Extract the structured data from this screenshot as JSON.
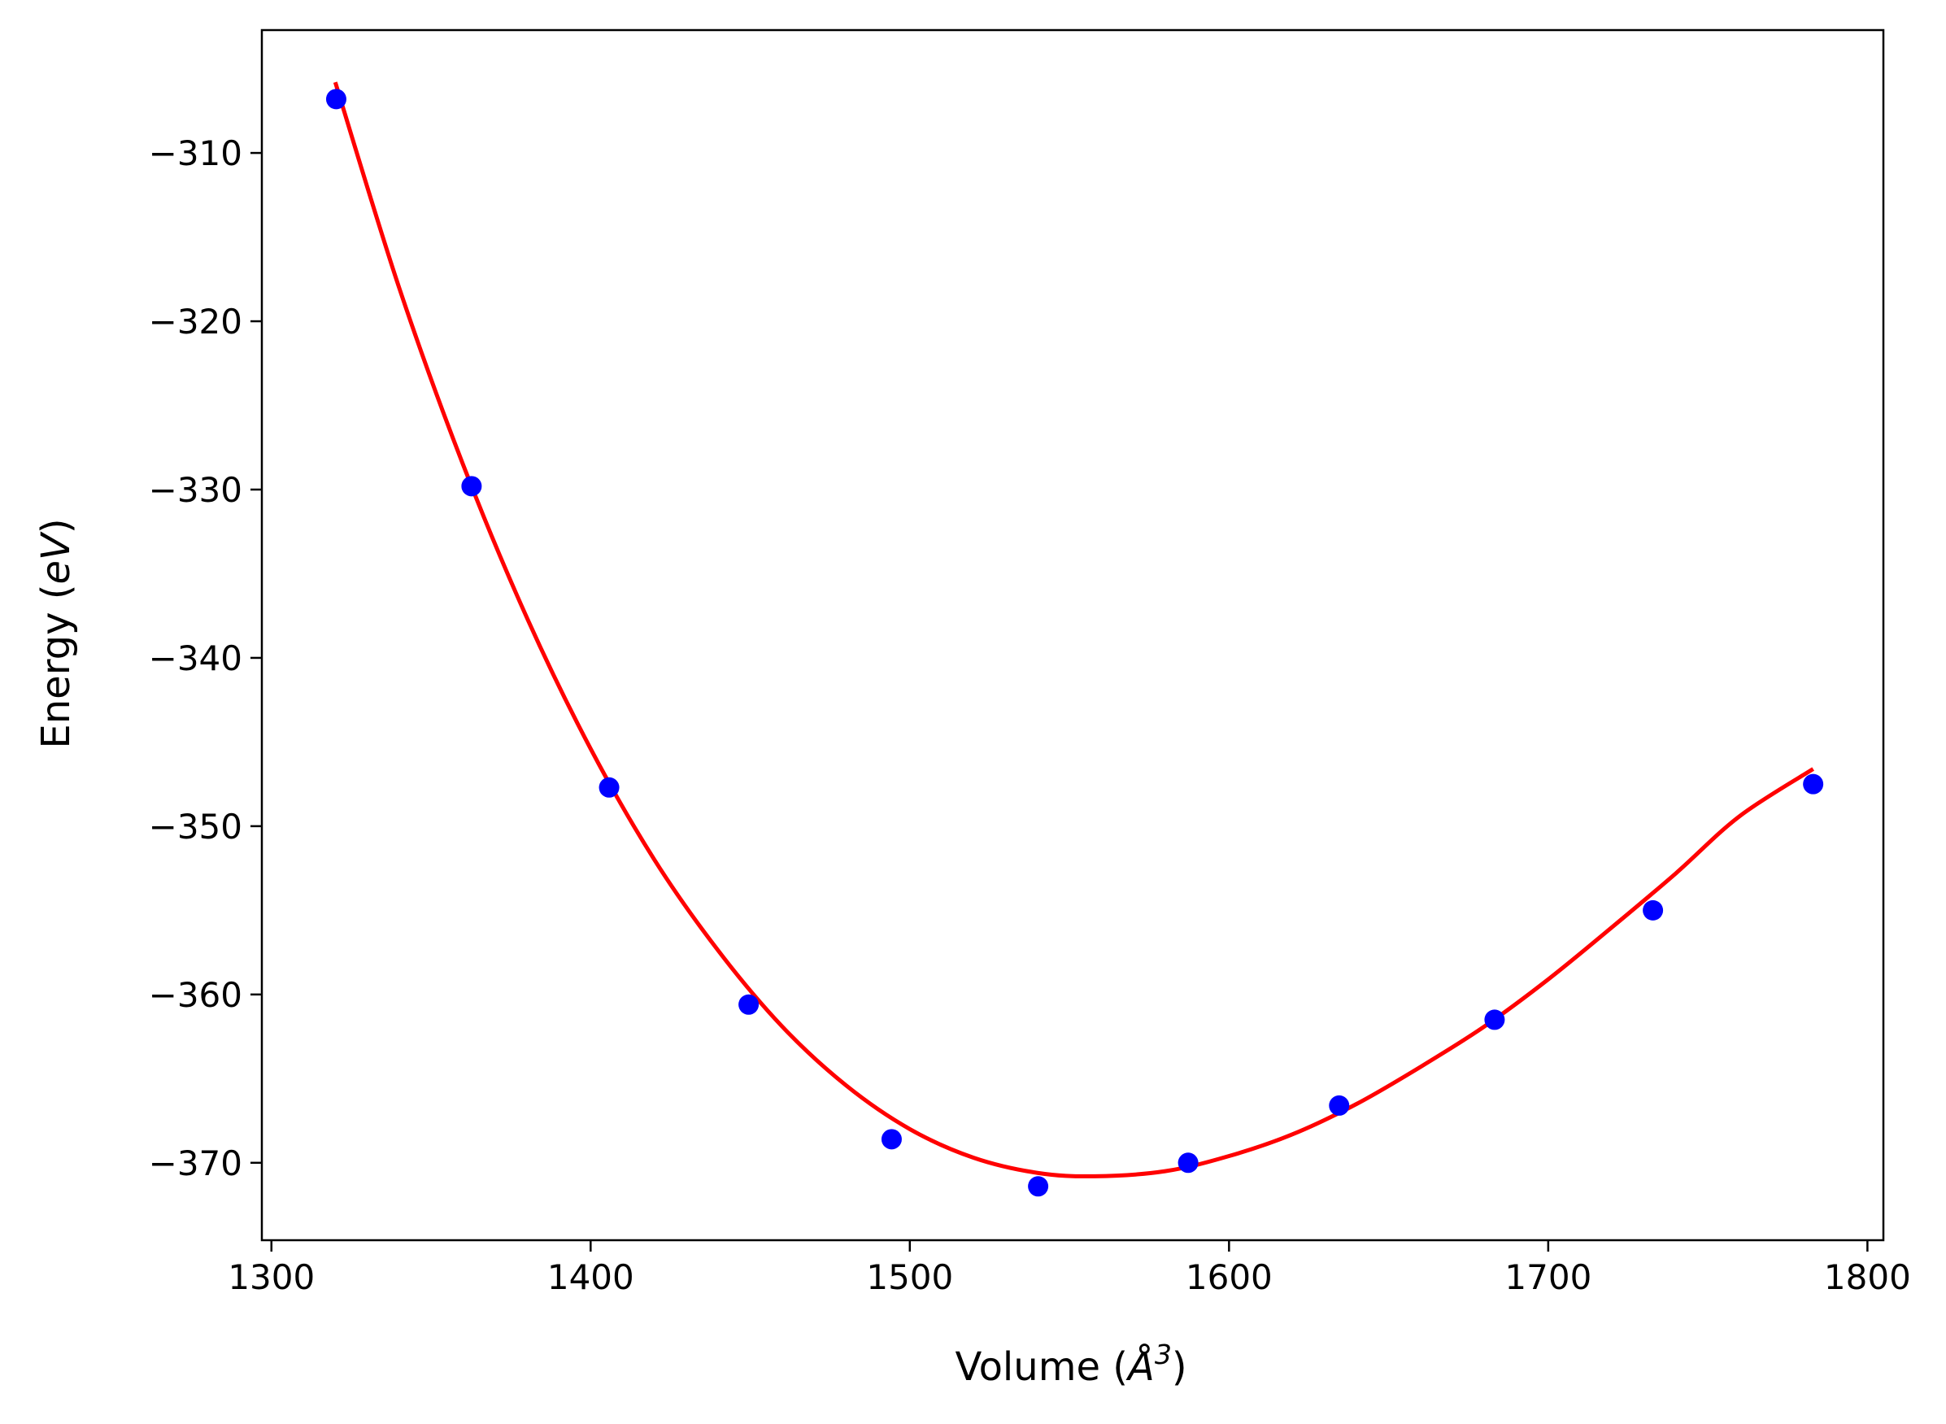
{
  "chart_data": {
    "type": "scatter",
    "title": "",
    "xlabel_prefix": "Volume (",
    "xlabel_unit": "Å",
    "xlabel_exp": "3",
    "xlabel_suffix": ")",
    "ylabel_prefix": "Energy (",
    "ylabel_unit": "eV",
    "ylabel_suffix": ")",
    "xlim": [
      1297,
      1805
    ],
    "ylim": [
      -374.6,
      -302.7
    ],
    "x_ticks": [
      1300,
      1400,
      1500,
      1600,
      1700,
      1800
    ],
    "y_ticks": [
      -310,
      -320,
      -330,
      -340,
      -350,
      -360,
      -370
    ],
    "x_tick_labels": [
      "1300",
      "1400",
      "1500",
      "1600",
      "1700",
      "1800"
    ],
    "y_tick_labels": [
      "−310",
      "−320",
      "−330",
      "−340",
      "−350",
      "−360",
      "−370"
    ],
    "grid": false,
    "series": [
      {
        "kind": "points",
        "color": "#0000ff",
        "x": [
          1320.3,
          1362.7,
          1405.8,
          1449.5,
          1494.3,
          1540.2,
          1587.2,
          1634.5,
          1683.2,
          1732.8,
          1783.0
        ],
        "y": [
          -306.8,
          -329.8,
          -347.7,
          -360.6,
          -368.6,
          -371.4,
          -370.0,
          -366.6,
          -361.5,
          -355.0,
          -347.5
        ]
      },
      {
        "kind": "fit-curve",
        "color": "#ff0000",
        "x": [
          1320,
          1340,
          1360,
          1380,
          1400,
          1420,
          1440,
          1460,
          1480,
          1500,
          1520,
          1540,
          1558,
          1580,
          1600,
          1620,
          1640,
          1660,
          1680,
          1700,
          1720,
          1740,
          1760,
          1783
        ],
        "y": [
          -305.8,
          -318.0,
          -328.5,
          -337.6,
          -345.4,
          -352.0,
          -357.4,
          -361.9,
          -365.4,
          -368.0,
          -369.7,
          -370.6,
          -370.8,
          -370.5,
          -369.6,
          -368.3,
          -366.5,
          -364.3,
          -361.9,
          -359.1,
          -356.0,
          -352.8,
          -349.4,
          -346.6
        ]
      }
    ]
  }
}
